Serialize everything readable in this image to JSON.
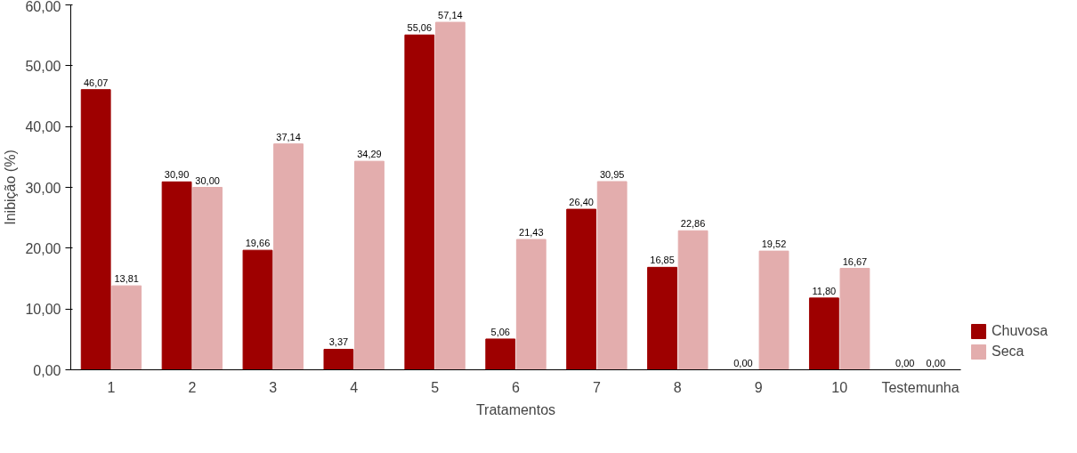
{
  "chart_data": {
    "type": "bar",
    "xlabel": "Tratamentos",
    "ylabel": "Inibição (%)",
    "categories": [
      "1",
      "2",
      "3",
      "4",
      "5",
      "6",
      "7",
      "8",
      "9",
      "10",
      "Testemunha"
    ],
    "series": [
      {
        "name": "Chuvosa",
        "color": "#9e0000",
        "values": [
          46.07,
          30.9,
          19.66,
          3.37,
          55.06,
          5.06,
          26.4,
          16.85,
          0.0,
          11.8,
          0.0
        ],
        "value_labels": [
          "46,07",
          "30,90",
          "19,66",
          "3,37",
          "55,06",
          "5,06",
          "26,40",
          "16,85",
          "0,00",
          "11,80",
          "0,00"
        ]
      },
      {
        "name": "Seca",
        "color": "#e3adad",
        "values": [
          13.81,
          30.0,
          37.14,
          34.29,
          57.14,
          21.43,
          30.95,
          22.86,
          19.52,
          16.67,
          0.0
        ],
        "value_labels": [
          "13,81",
          "30,00",
          "37,14",
          "34,29",
          "57,14",
          "21,43",
          "30,95",
          "22,86",
          "19,52",
          "16,67",
          "0,00"
        ]
      }
    ],
    "ylim": [
      0,
      60
    ],
    "yticks": [
      {
        "value": 0,
        "label": "0,00"
      },
      {
        "value": 10,
        "label": "10,00"
      },
      {
        "value": 20,
        "label": "20,00"
      },
      {
        "value": 30,
        "label": "30,00"
      },
      {
        "value": 40,
        "label": "40,00"
      },
      {
        "value": 50,
        "label": "50,00"
      },
      {
        "value": 60,
        "label": "60,00"
      }
    ],
    "grid": false,
    "legend": "right"
  }
}
